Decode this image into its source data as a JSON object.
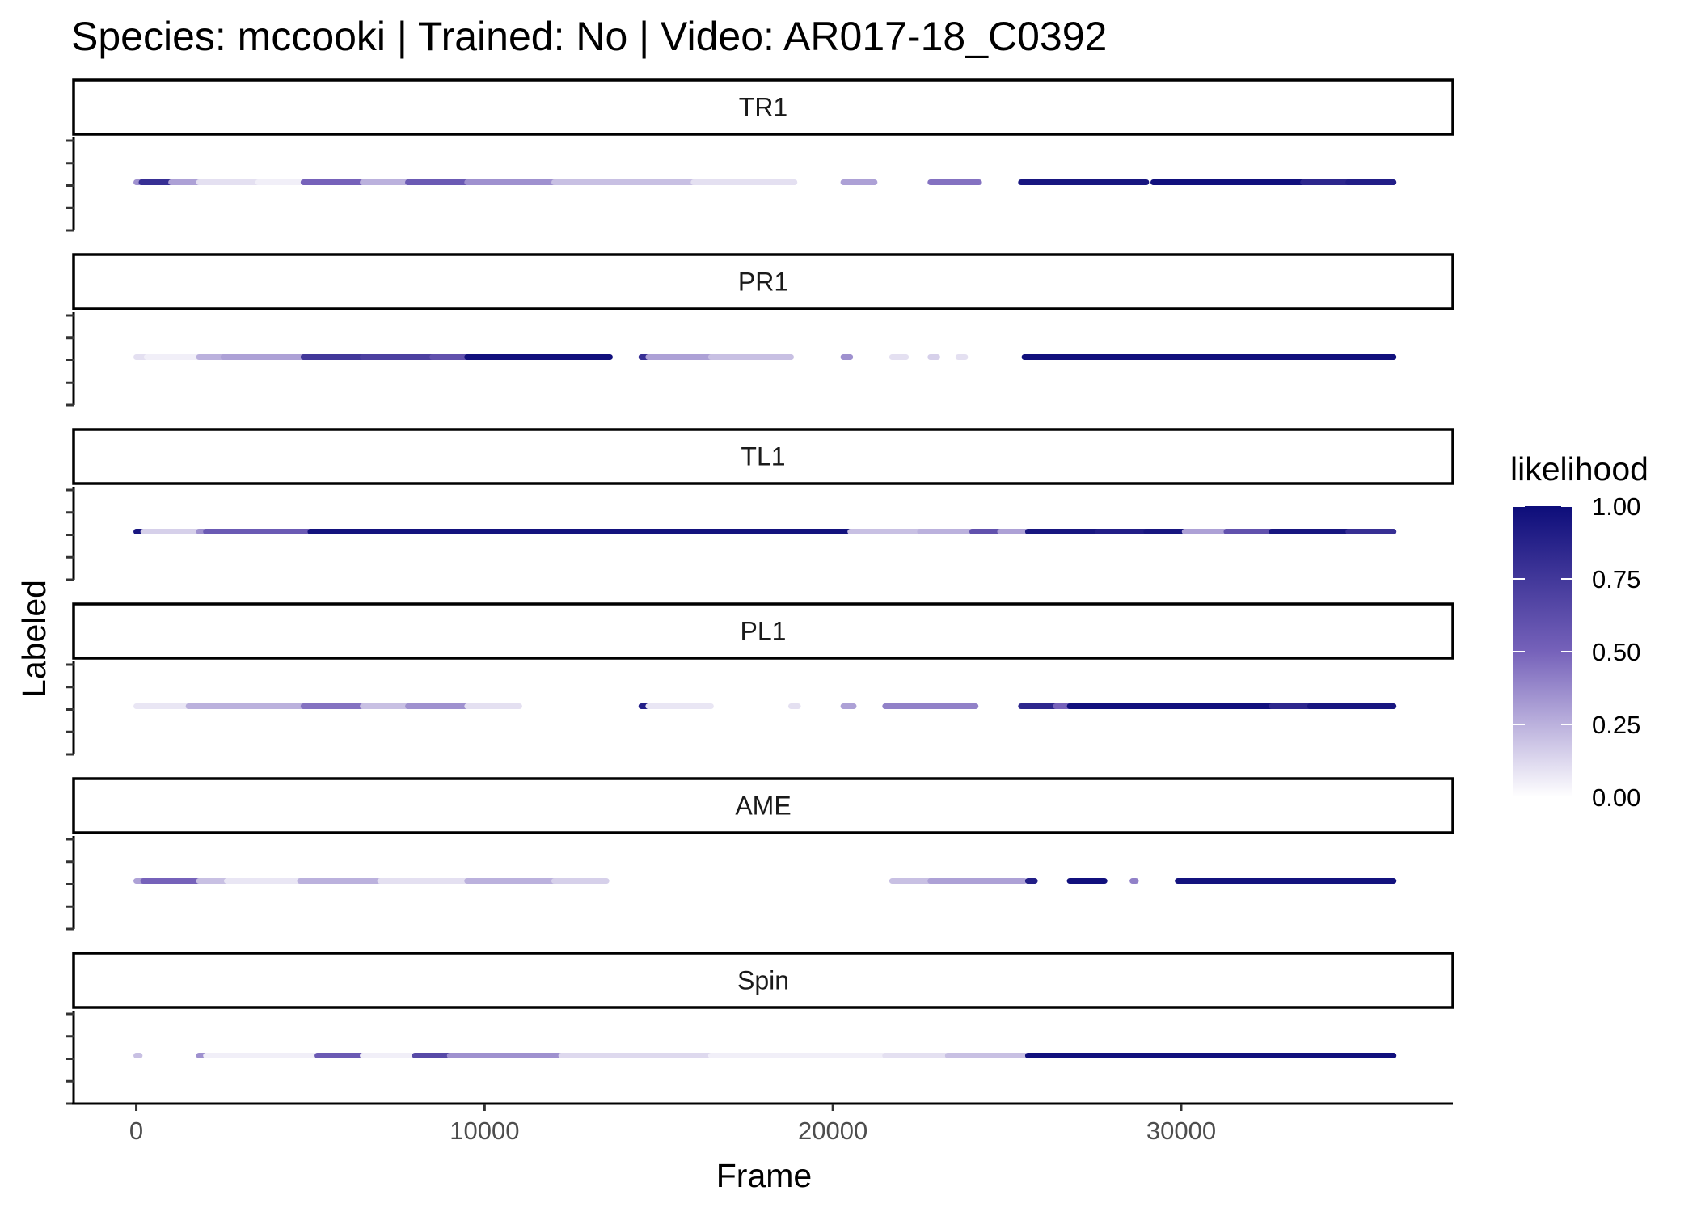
{
  "chart_data": {
    "type": "scatter",
    "title": "Species: mccooki | Trained: No | Video: AR017-18_C0392",
    "xlabel": "Frame",
    "ylabel": "Labeled",
    "xlim": [
      -1800,
      37800
    ],
    "x_ticks": [
      "0",
      "10000",
      "20000",
      "30000"
    ],
    "x_tick_values": [
      0,
      10000,
      20000,
      30000
    ],
    "grid": false,
    "legend": {
      "title": "likelihood",
      "position": "right",
      "labels": [
        "1.00",
        "0.75",
        "0.50",
        "0.25",
        "0.00"
      ],
      "label_values": [
        1.0,
        0.75,
        0.5,
        0.25,
        0.0
      ],
      "color_low": "#ffffff",
      "color_high": "#0d0d7a"
    },
    "panels": [
      {
        "name": "TR1",
        "segments": [
          [
            0,
            150,
            0.35
          ],
          [
            150,
            1000,
            0.8
          ],
          [
            1000,
            1800,
            0.3
          ],
          [
            1800,
            3500,
            0.1
          ],
          [
            3500,
            4800,
            0.05
          ],
          [
            4800,
            6500,
            0.5
          ],
          [
            6500,
            7800,
            0.25
          ],
          [
            7800,
            9500,
            0.55
          ],
          [
            9500,
            12000,
            0.35
          ],
          [
            12000,
            16000,
            0.2
          ],
          [
            16000,
            18900,
            0.1
          ],
          [
            20300,
            21200,
            0.3
          ],
          [
            22800,
            24200,
            0.45
          ],
          [
            25400,
            29000,
            0.95
          ],
          [
            29200,
            33500,
            0.98
          ],
          [
            33500,
            34800,
            0.85
          ],
          [
            34800,
            36100,
            0.9
          ]
        ]
      },
      {
        "name": "PR1",
        "segments": [
          [
            0,
            300,
            0.1
          ],
          [
            300,
            1800,
            0.05
          ],
          [
            1800,
            2500,
            0.25
          ],
          [
            2500,
            4800,
            0.3
          ],
          [
            4800,
            6500,
            0.75
          ],
          [
            6500,
            8500,
            0.7
          ],
          [
            8500,
            9500,
            0.6
          ],
          [
            9500,
            13600,
            0.98
          ],
          [
            14500,
            14700,
            0.8
          ],
          [
            14700,
            16500,
            0.3
          ],
          [
            16500,
            18800,
            0.2
          ],
          [
            20300,
            20500,
            0.35
          ],
          [
            21700,
            22100,
            0.1
          ],
          [
            22800,
            23000,
            0.15
          ],
          [
            23600,
            23800,
            0.1
          ],
          [
            25500,
            36100,
            0.98
          ]
        ]
      },
      {
        "name": "TL1",
        "segments": [
          [
            0,
            200,
            0.95
          ],
          [
            200,
            1800,
            0.15
          ],
          [
            1800,
            2000,
            0.35
          ],
          [
            2000,
            5000,
            0.55
          ],
          [
            5000,
            20500,
            0.97
          ],
          [
            20500,
            22500,
            0.2
          ],
          [
            22500,
            24000,
            0.25
          ],
          [
            24000,
            24800,
            0.6
          ],
          [
            24800,
            25600,
            0.3
          ],
          [
            25600,
            27600,
            0.95
          ],
          [
            27600,
            29000,
            0.9
          ],
          [
            29000,
            30100,
            0.95
          ],
          [
            30100,
            31300,
            0.3
          ],
          [
            31300,
            32600,
            0.6
          ],
          [
            32600,
            34800,
            0.95
          ],
          [
            34800,
            36100,
            0.8
          ]
        ]
      },
      {
        "name": "PL1",
        "segments": [
          [
            0,
            1500,
            0.08
          ],
          [
            1500,
            4800,
            0.25
          ],
          [
            4800,
            6500,
            0.45
          ],
          [
            6500,
            7800,
            0.2
          ],
          [
            7800,
            9500,
            0.35
          ],
          [
            9500,
            11000,
            0.1
          ],
          [
            14500,
            14700,
            0.9
          ],
          [
            14700,
            16500,
            0.08
          ],
          [
            18800,
            19000,
            0.1
          ],
          [
            20300,
            20600,
            0.3
          ],
          [
            21500,
            24100,
            0.4
          ],
          [
            25400,
            26400,
            0.85
          ],
          [
            26400,
            26800,
            0.5
          ],
          [
            26800,
            32600,
            0.98
          ],
          [
            32600,
            33700,
            0.85
          ],
          [
            33700,
            36100,
            0.95
          ]
        ]
      },
      {
        "name": "AME",
        "segments": [
          [
            0,
            200,
            0.3
          ],
          [
            200,
            1800,
            0.5
          ],
          [
            1800,
            2600,
            0.2
          ],
          [
            2600,
            4700,
            0.08
          ],
          [
            4700,
            7000,
            0.25
          ],
          [
            7000,
            9500,
            0.1
          ],
          [
            9500,
            12000,
            0.25
          ],
          [
            12000,
            13500,
            0.15
          ],
          [
            21700,
            22800,
            0.2
          ],
          [
            22800,
            25500,
            0.3
          ],
          [
            25600,
            25800,
            0.9
          ],
          [
            26800,
            27800,
            0.98
          ],
          [
            28600,
            28700,
            0.4
          ],
          [
            29900,
            36100,
            0.97
          ]
        ]
      },
      {
        "name": "Spin",
        "segments": [
          [
            0,
            100,
            0.2
          ],
          [
            1800,
            2000,
            0.35
          ],
          [
            2000,
            5200,
            0.05
          ],
          [
            5200,
            6500,
            0.55
          ],
          [
            6500,
            8000,
            0.05
          ],
          [
            8000,
            9000,
            0.65
          ],
          [
            9000,
            12200,
            0.35
          ],
          [
            12200,
            16500,
            0.12
          ],
          [
            16500,
            21500,
            0.05
          ],
          [
            21500,
            23300,
            0.1
          ],
          [
            23300,
            25600,
            0.2
          ],
          [
            25600,
            36100,
            0.98
          ]
        ]
      }
    ]
  }
}
